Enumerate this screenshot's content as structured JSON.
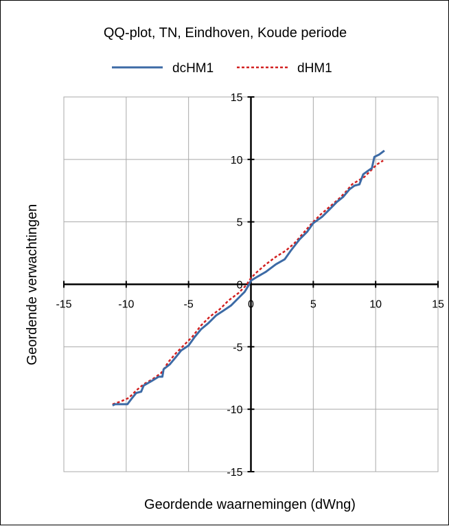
{
  "chart_data": {
    "type": "line",
    "title": "QQ-plot, TN, Eindhoven, Koude periode",
    "xlabel": "Geordende waarnemingen (dWng)",
    "ylabel": "Geordende verwachtingen",
    "xlim": [
      -15,
      15
    ],
    "ylim": [
      -15,
      15
    ],
    "xticks": [
      -15,
      -10,
      -5,
      0,
      5,
      10,
      15
    ],
    "yticks": [
      -15,
      -10,
      -5,
      0,
      5,
      10,
      15
    ],
    "grid": true,
    "legend": "top",
    "series": [
      {
        "name": "dcHM1",
        "color": "#3C6AA5",
        "style": "solid",
        "points": [
          [
            -11.1,
            -9.7
          ],
          [
            -10.9,
            -9.6
          ],
          [
            -9.9,
            -9.6
          ],
          [
            -9.6,
            -9.2
          ],
          [
            -9.2,
            -8.7
          ],
          [
            -8.8,
            -8.6
          ],
          [
            -8.6,
            -8.1
          ],
          [
            -7.9,
            -7.7
          ],
          [
            -7.4,
            -7.4
          ],
          [
            -7.1,
            -7.4
          ],
          [
            -7.0,
            -6.8
          ],
          [
            -6.5,
            -6.4
          ],
          [
            -6.0,
            -5.8
          ],
          [
            -5.6,
            -5.3
          ],
          [
            -5.0,
            -4.9
          ],
          [
            -4.5,
            -4.2
          ],
          [
            -4.0,
            -3.6
          ],
          [
            -3.4,
            -3.1
          ],
          [
            -2.8,
            -2.5
          ],
          [
            -2.2,
            -2.1
          ],
          [
            -1.6,
            -1.7
          ],
          [
            -1.0,
            -1.1
          ],
          [
            -0.5,
            -0.6
          ],
          [
            -0.2,
            -0.1
          ],
          [
            0.0,
            0.3
          ],
          [
            0.5,
            0.6
          ],
          [
            1.2,
            1.0
          ],
          [
            2.0,
            1.6
          ],
          [
            2.7,
            2.0
          ],
          [
            3.2,
            2.7
          ],
          [
            3.9,
            3.6
          ],
          [
            4.5,
            4.2
          ],
          [
            5.0,
            4.9
          ],
          [
            5.7,
            5.4
          ],
          [
            6.3,
            6.0
          ],
          [
            6.9,
            6.6
          ],
          [
            7.4,
            7.0
          ],
          [
            7.9,
            7.6
          ],
          [
            8.3,
            7.9
          ],
          [
            8.7,
            8.0
          ],
          [
            9.0,
            8.8
          ],
          [
            9.4,
            9.1
          ],
          [
            9.7,
            9.3
          ],
          [
            9.9,
            10.2
          ],
          [
            10.3,
            10.4
          ],
          [
            10.7,
            10.7
          ]
        ]
      },
      {
        "name": "dHM1",
        "color": "#D22020",
        "style": "dashed",
        "points": [
          [
            -11.1,
            -9.6
          ],
          [
            -10.5,
            -9.4
          ],
          [
            -9.8,
            -9.1
          ],
          [
            -9.2,
            -8.5
          ],
          [
            -8.6,
            -8.0
          ],
          [
            -7.9,
            -7.6
          ],
          [
            -7.2,
            -7.1
          ],
          [
            -6.6,
            -6.2
          ],
          [
            -6.0,
            -5.5
          ],
          [
            -5.4,
            -4.9
          ],
          [
            -4.7,
            -4.2
          ],
          [
            -4.0,
            -3.3
          ],
          [
            -3.3,
            -2.6
          ],
          [
            -2.5,
            -2.0
          ],
          [
            -1.8,
            -1.3
          ],
          [
            -1.0,
            -0.7
          ],
          [
            -0.4,
            -0.1
          ],
          [
            0.0,
            0.5
          ],
          [
            0.5,
            1.0
          ],
          [
            1.2,
            1.6
          ],
          [
            2.0,
            2.2
          ],
          [
            2.8,
            2.7
          ],
          [
            3.5,
            3.3
          ],
          [
            4.2,
            4.1
          ],
          [
            4.9,
            4.9
          ],
          [
            5.6,
            5.6
          ],
          [
            6.3,
            6.2
          ],
          [
            7.0,
            6.8
          ],
          [
            7.6,
            7.4
          ],
          [
            8.1,
            8.0
          ],
          [
            8.6,
            8.3
          ],
          [
            9.1,
            8.6
          ],
          [
            9.6,
            9.1
          ],
          [
            10.1,
            9.6
          ],
          [
            10.6,
            9.9
          ]
        ]
      }
    ]
  }
}
